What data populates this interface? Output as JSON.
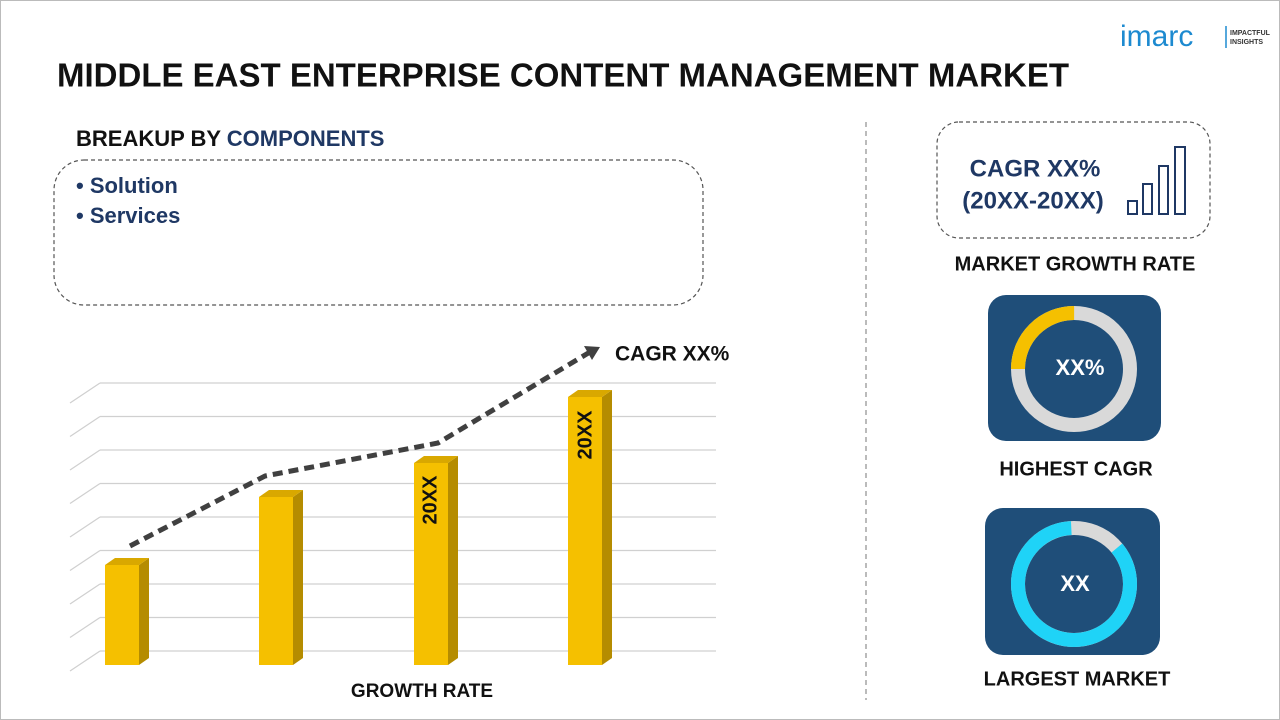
{
  "logo": {
    "brand": "imarc",
    "tagline_1": "IMPACTFUL",
    "tagline_2": "INSIGHTS"
  },
  "title": "MIDDLE EAST ENTERPRISE CONTENT MANAGEMENT MARKET",
  "breakup": {
    "prefix": "BREAKUP BY",
    "dimension": "COMPONENTS",
    "items": [
      "• Solution",
      "• Services"
    ]
  },
  "growth_chart": {
    "annotation": "CAGR XX%",
    "bar_labels": [
      "20XX",
      "20XX"
    ],
    "caption": "GROWTH RATE"
  },
  "market_growth": {
    "cagr": "CAGR XX%",
    "period": "(20XX-20XX)",
    "caption": "MARKET GROWTH RATE"
  },
  "highest_cagr": {
    "value": "XX%",
    "caption": "HIGHEST CAGR"
  },
  "largest_market": {
    "value": "XX",
    "caption": "LARGEST MARKET"
  }
}
